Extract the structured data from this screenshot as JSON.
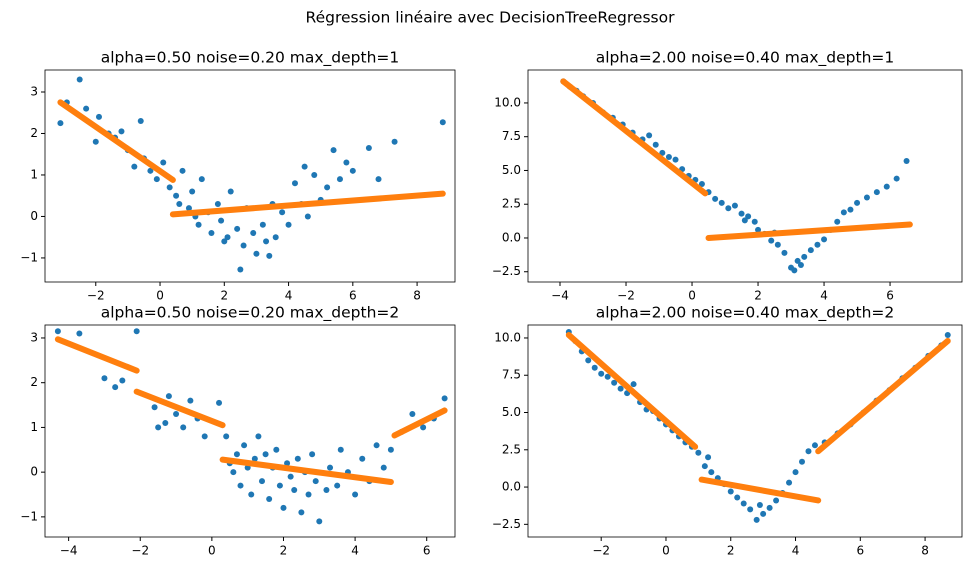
{
  "title": "Régression linéaire avec DecisionTreeRegressor",
  "chart_data": [
    {
      "type": "scatter",
      "title": "alpha=0.50 noise=0.20 max_depth=1",
      "xlim": [
        -3.58,
        9.18
      ],
      "ylim": [
        -1.58,
        3.53
      ],
      "xticks": [
        {
          "value": -2,
          "label": "−2"
        },
        0,
        2,
        4,
        6,
        8
      ],
      "yticks": [
        {
          "value": -1,
          "label": "−1"
        },
        0,
        1,
        2,
        3
      ],
      "series": [
        {
          "color": "#1f77b4",
          "x": [
            -3.1,
            -2.9,
            -2.5,
            -2.3,
            -2.0,
            -1.9,
            -1.6,
            -1.4,
            -1.2,
            -1.0,
            -0.8,
            -0.6,
            -0.5,
            -0.3,
            -0.1,
            0.1,
            0.3,
            0.5,
            0.7,
            0.9,
            1.0,
            1.2,
            1.3,
            1.5,
            1.6,
            1.8,
            1.9,
            2.1,
            2.2,
            2.4,
            2.5,
            2.6,
            2.7,
            2.9,
            3.0,
            3.2,
            3.3,
            3.5,
            3.6,
            3.8,
            4.0,
            4.2,
            4.4,
            4.6,
            4.8,
            5.0,
            5.2,
            5.4,
            5.6,
            5.8,
            6.0,
            6.5,
            6.8,
            7.3,
            8.8,
            2.0,
            3.4,
            1.1,
            0.6,
            4.5
          ],
          "values": [
            2.25,
            2.75,
            3.3,
            2.6,
            1.8,
            2.4,
            2.0,
            1.9,
            2.05,
            1.6,
            1.2,
            2.3,
            1.4,
            1.1,
            0.9,
            1.3,
            0.7,
            0.5,
            1.1,
            0.2,
            0.6,
            -0.2,
            0.9,
            0.1,
            -0.4,
            0.3,
            -0.1,
            -0.5,
            0.6,
            -0.3,
            -1.28,
            -0.7,
            0.2,
            -0.4,
            -0.9,
            -0.2,
            -0.6,
            0.3,
            -0.5,
            0.1,
            -0.2,
            0.8,
            0.3,
            0.0,
            1.0,
            0.4,
            0.7,
            1.6,
            0.9,
            1.3,
            1.1,
            1.65,
            0.9,
            1.8,
            2.27,
            -0.6,
            -0.95,
            0.0,
            0.3,
            1.2
          ]
        },
        {
          "color": "#ff7f0e",
          "type": "line",
          "x": [
            -3.1,
            0.4,
            0.4,
            0.4,
            8.8
          ],
          "values": [
            2.75,
            0.88,
            null,
            0.05,
            0.55
          ]
        }
      ]
    },
    {
      "type": "scatter",
      "title": "alpha=2.00 noise=0.40 max_depth=1",
      "xlim": [
        -4.97,
        8.18
      ],
      "ylim": [
        -3.26,
        12.44
      ],
      "xticks": [
        {
          "value": -4,
          "label": "−4"
        },
        {
          "value": -2,
          "label": "−2"
        },
        0,
        2,
        4,
        6
      ],
      "yticks": [
        {
          "value": -2.5,
          "label": "−2.5"
        },
        {
          "value": 0,
          "label": "0.0"
        },
        2.5,
        {
          "value": 5,
          "label": "5.0"
        },
        7.5,
        {
          "value": 10,
          "label": "10.0"
        }
      ],
      "series": [
        {
          "color": "#1f77b4",
          "x": [
            -3.9,
            -3.7,
            -3.5,
            -3.3,
            -3.0,
            -2.7,
            -2.4,
            -2.1,
            -1.8,
            -1.5,
            -1.3,
            -1.1,
            -0.9,
            -0.7,
            -0.5,
            -0.3,
            -0.1,
            0.1,
            0.3,
            0.5,
            0.7,
            0.9,
            1.1,
            1.3,
            1.5,
            1.7,
            1.9,
            2.0,
            2.2,
            2.4,
            2.6,
            2.8,
            3.0,
            3.1,
            3.2,
            3.4,
            3.6,
            3.8,
            4.0,
            4.2,
            4.4,
            4.6,
            4.8,
            5.0,
            5.3,
            5.6,
            5.9,
            6.2,
            6.5,
            2.5,
            1.6,
            3.3
          ],
          "values": [
            11.6,
            11.2,
            10.9,
            10.5,
            10.0,
            9.3,
            8.9,
            8.4,
            7.8,
            7.3,
            7.6,
            6.9,
            6.3,
            6.0,
            5.8,
            5.1,
            4.6,
            4.3,
            4.0,
            3.4,
            2.9,
            2.6,
            2.2,
            2.4,
            1.8,
            1.6,
            1.2,
            0.6,
            0.3,
            -0.2,
            -0.5,
            -1.1,
            -2.2,
            -2.4,
            -1.7,
            -1.4,
            -0.9,
            -0.5,
            -0.1,
            0.6,
            1.2,
            1.9,
            2.1,
            2.6,
            3.0,
            3.4,
            3.8,
            4.4,
            5.7,
            0.4,
            1.3,
            -2.0
          ]
        },
        {
          "color": "#ff7f0e",
          "type": "line",
          "x": [
            -3.9,
            0.4,
            0.5,
            0.5,
            6.6
          ],
          "values": [
            11.6,
            3.3,
            null,
            0.0,
            1.0
          ]
        }
      ]
    },
    {
      "type": "scatter",
      "title": "alpha=0.50 noise=0.20 max_depth=2",
      "xlim": [
        -4.66,
        6.79
      ],
      "ylim": [
        -1.45,
        3.29
      ],
      "xticks": [
        {
          "value": -4,
          "label": "−4"
        },
        {
          "value": -2,
          "label": "−2"
        },
        0,
        2,
        4,
        6
      ],
      "yticks": [
        {
          "value": -1,
          "label": "−1"
        },
        0,
        1,
        2,
        3
      ],
      "series": [
        {
          "color": "#1f77b4",
          "x": [
            -4.3,
            -3.7,
            -3.0,
            -2.7,
            -2.5,
            -2.1,
            -1.6,
            -1.5,
            -1.3,
            -1.2,
            -1.0,
            -0.8,
            -0.6,
            -0.4,
            -0.2,
            0.2,
            0.4,
            0.5,
            0.6,
            0.7,
            0.8,
            0.9,
            1.0,
            1.1,
            1.2,
            1.3,
            1.4,
            1.5,
            1.6,
            1.7,
            1.8,
            1.9,
            2.0,
            2.1,
            2.2,
            2.3,
            2.4,
            2.5,
            2.6,
            2.7,
            2.8,
            2.9,
            3.0,
            3.2,
            3.3,
            3.5,
            3.6,
            3.8,
            4.0,
            4.2,
            4.4,
            4.6,
            4.8,
            5.0,
            5.3,
            5.6,
            5.9,
            6.2,
            6.5
          ],
          "values": [
            3.15,
            3.1,
            2.1,
            1.9,
            2.05,
            3.15,
            1.45,
            1.0,
            1.1,
            1.7,
            1.3,
            1.0,
            1.6,
            1.2,
            0.8,
            1.55,
            0.8,
            0.2,
            0.0,
            0.4,
            -0.3,
            0.6,
            0.1,
            -0.5,
            0.3,
            0.8,
            -0.2,
            0.4,
            -0.6,
            0.1,
            0.5,
            -0.3,
            -0.8,
            0.2,
            -0.1,
            -0.4,
            0.3,
            -0.9,
            0.0,
            -0.5,
            0.4,
            -0.2,
            -1.1,
            -0.4,
            0.1,
            -0.3,
            0.5,
            0.0,
            -0.5,
            0.3,
            -0.2,
            0.6,
            0.1,
            0.5,
            0.9,
            1.3,
            1.0,
            1.2,
            1.65
          ]
        },
        {
          "color": "#ff7f0e",
          "type": "line",
          "x": [
            -4.3,
            -2.1,
            -2.1,
            -2.1,
            0.3,
            0.3,
            0.3,
            5.0,
            5.1,
            5.1,
            6.5
          ],
          "values": [
            2.97,
            2.27,
            null,
            1.8,
            1.05,
            null,
            0.28,
            -0.22,
            null,
            0.82,
            1.38
          ]
        }
      ]
    },
    {
      "type": "scatter",
      "title": "alpha=2.00 noise=0.40 max_depth=2",
      "xlim": [
        -4.26,
        9.14
      ],
      "ylim": [
        -3.35,
        10.87
      ],
      "xticks": [
        {
          "value": -2,
          "label": "−2"
        },
        0,
        2,
        4,
        6,
        8
      ],
      "yticks": [
        {
          "value": -2.5,
          "label": "−2.5"
        },
        {
          "value": 0,
          "label": "0.0"
        },
        2.5,
        {
          "value": 5,
          "label": "5.0"
        },
        7.5,
        {
          "value": 10,
          "label": "10.0"
        }
      ],
      "series": [
        {
          "color": "#1f77b4",
          "x": [
            -3.0,
            -2.8,
            -2.6,
            -2.4,
            -2.2,
            -2.0,
            -1.8,
            -1.6,
            -1.4,
            -1.2,
            -1.0,
            -0.8,
            -0.6,
            -0.4,
            -0.2,
            0.0,
            0.2,
            0.4,
            0.6,
            0.8,
            1.0,
            1.2,
            1.4,
            1.6,
            1.8,
            2.0,
            2.2,
            2.4,
            2.6,
            2.8,
            3.0,
            3.2,
            3.4,
            3.6,
            3.8,
            4.0,
            4.2,
            4.4,
            4.6,
            4.9,
            5.3,
            5.7,
            6.1,
            6.5,
            6.9,
            7.3,
            7.7,
            8.1,
            8.5,
            8.7,
            1.3,
            2.9
          ],
          "values": [
            10.4,
            9.8,
            9.1,
            8.5,
            8.0,
            7.6,
            7.4,
            7.0,
            6.6,
            6.3,
            6.9,
            5.7,
            5.2,
            5.1,
            4.6,
            4.2,
            3.8,
            3.4,
            3.0,
            2.7,
            2.3,
            1.4,
            1.0,
            0.6,
            0.2,
            -0.3,
            -0.7,
            -1.1,
            -1.5,
            -2.2,
            -1.8,
            -1.4,
            -0.9,
            -0.4,
            0.3,
            1.0,
            1.7,
            2.4,
            2.8,
            3.0,
            3.6,
            4.2,
            5.0,
            5.8,
            6.5,
            7.3,
            8.0,
            8.8,
            9.5,
            10.2,
            2.0,
            -1.2
          ]
        },
        {
          "color": "#ff7f0e",
          "type": "line",
          "x": [
            -3.0,
            0.9,
            1.1,
            1.1,
            4.7,
            4.7,
            4.7,
            8.7
          ],
          "values": [
            10.2,
            2.7,
            null,
            0.5,
            -0.9,
            null,
            2.4,
            9.8
          ]
        }
      ]
    }
  ]
}
